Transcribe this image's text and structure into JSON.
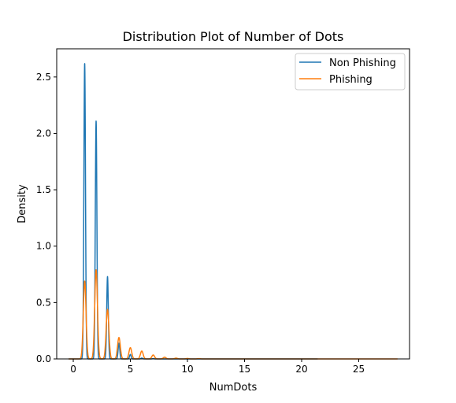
{
  "chart_data": {
    "type": "line",
    "title": "Distribution Plot of Number of Dots",
    "xlabel": "NumDots",
    "ylabel": "Density",
    "xlim": [
      -1.45,
      29.45
    ],
    "ylim": [
      0,
      2.75
    ],
    "xticks": [
      0,
      5,
      10,
      15,
      20,
      25
    ],
    "yticks": [
      0.0,
      0.5,
      1.0,
      1.5,
      2.0,
      2.5
    ],
    "grid": false,
    "legend_position": "top-right",
    "series": [
      {
        "name": "Non Phishing",
        "color": "#1f77b4",
        "x_range": [
          -0.4,
          21.4
        ],
        "bandwidth": 0.07,
        "peaks": [
          {
            "x": 1,
            "y": 2.62
          },
          {
            "x": 2,
            "y": 2.11
          },
          {
            "x": 3,
            "y": 0.73
          },
          {
            "x": 4,
            "y": 0.14
          },
          {
            "x": 5,
            "y": 0.04
          },
          {
            "x": 6,
            "y": 0.008
          },
          {
            "x": 7,
            "y": 0.003
          }
        ]
      },
      {
        "name": "Phishing",
        "color": "#ff7f0e",
        "x_range": [
          -0.4,
          28.4
        ],
        "bandwidth": 0.12,
        "peaks": [
          {
            "x": 1,
            "y": 0.69
          },
          {
            "x": 2,
            "y": 0.79
          },
          {
            "x": 3,
            "y": 0.44
          },
          {
            "x": 4,
            "y": 0.19
          },
          {
            "x": 5,
            "y": 0.1
          },
          {
            "x": 6,
            "y": 0.07
          },
          {
            "x": 7,
            "y": 0.035
          },
          {
            "x": 8,
            "y": 0.015
          },
          {
            "x": 9,
            "y": 0.007
          },
          {
            "x": 10,
            "y": 0.004
          },
          {
            "x": 11,
            "y": 0.003
          }
        ]
      }
    ]
  }
}
